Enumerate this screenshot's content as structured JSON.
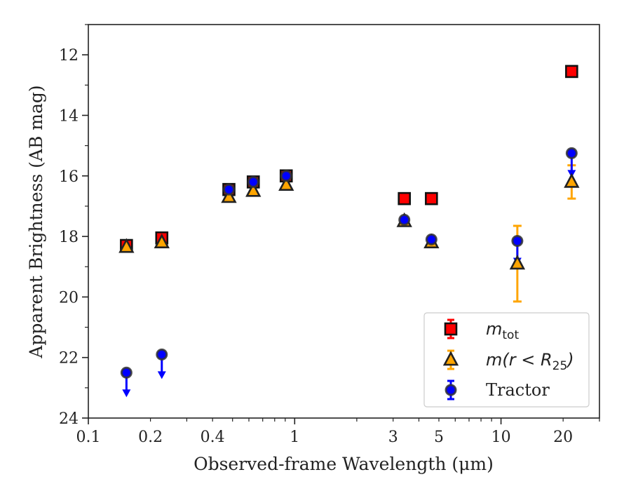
{
  "chart_data": {
    "type": "scatter",
    "xlabel": "Observed-frame Wavelength (μm)",
    "ylabel": "Apparent Brightness (AB mag)",
    "x_scale": "log",
    "xlim": [
      0.1,
      30
    ],
    "ylim": [
      24,
      11
    ],
    "y_inverted": true,
    "x_ticks": [
      0.1,
      0.2,
      0.4,
      1,
      3,
      5,
      10,
      20
    ],
    "x_tick_labels": [
      "0.1",
      "0.2",
      "0.4",
      "1",
      "3",
      "5",
      "10",
      "20"
    ],
    "y_ticks": [
      12,
      14,
      16,
      18,
      20,
      22,
      24
    ],
    "y_tick_labels": [
      "12",
      "14",
      "16",
      "18",
      "20",
      "22",
      "24"
    ],
    "grid": false,
    "legend_position": "lower-right",
    "series": [
      {
        "name": "m_tot",
        "legend_main": "m",
        "legend_sub": "tot",
        "legend_tail": "",
        "marker": "square",
        "color": "#ff0000",
        "edge": "#111111",
        "points": [
          {
            "x": 0.153,
            "y": 18.3,
            "err": 0.1
          },
          {
            "x": 0.227,
            "y": 18.05,
            "err": 0.05
          },
          {
            "x": 0.48,
            "y": 16.45,
            "err": 0.05
          },
          {
            "x": 0.63,
            "y": 16.2,
            "err": 0.05
          },
          {
            "x": 0.91,
            "y": 16.0,
            "err": 0.05
          },
          {
            "x": 3.4,
            "y": 16.75,
            "err": 0.05
          },
          {
            "x": 4.6,
            "y": 16.75,
            "err": 0.05
          },
          {
            "x": 22.0,
            "y": 12.55,
            "err": 0.05
          }
        ]
      },
      {
        "name": "m(r < R25)",
        "legend_main": "m(r < R",
        "legend_sub": "25",
        "legend_tail": ")",
        "marker": "triangle",
        "color": "#ffa500",
        "edge": "#222222",
        "points": [
          {
            "x": 0.153,
            "y": 18.35,
            "err": 0.05
          },
          {
            "x": 0.227,
            "y": 18.2,
            "err": 0.05
          },
          {
            "x": 0.48,
            "y": 16.7,
            "err": 0.05
          },
          {
            "x": 0.63,
            "y": 16.5,
            "err": 0.05
          },
          {
            "x": 0.91,
            "y": 16.3,
            "err": 0.05
          },
          {
            "x": 3.4,
            "y": 17.5,
            "err": 0.05
          },
          {
            "x": 4.6,
            "y": 18.2,
            "err": 0.05
          },
          {
            "x": 12.0,
            "y": 18.9,
            "err": 1.25
          },
          {
            "x": 22.0,
            "y": 16.2,
            "err": 0.55
          }
        ]
      },
      {
        "name": "Tractor",
        "legend_main": "Tractor",
        "legend_sub": "",
        "legend_tail": "",
        "marker": "circle",
        "color": "#0000ff",
        "edge": "#333333",
        "points": [
          {
            "x": 0.153,
            "y": 22.5,
            "err": 0,
            "upper_limit": true
          },
          {
            "x": 0.227,
            "y": 21.9,
            "err": 0,
            "upper_limit": true
          },
          {
            "x": 0.48,
            "y": 16.45,
            "err": 0.05
          },
          {
            "x": 0.63,
            "y": 16.2,
            "err": 0.05
          },
          {
            "x": 0.91,
            "y": 16.0,
            "err": 0.05
          },
          {
            "x": 3.4,
            "y": 17.45,
            "err": 0.05
          },
          {
            "x": 4.6,
            "y": 18.1,
            "err": 0.05
          },
          {
            "x": 12.0,
            "y": 18.15,
            "err": 0,
            "upper_limit": true
          },
          {
            "x": 22.0,
            "y": 15.25,
            "err": 0,
            "upper_limit": true
          }
        ]
      }
    ]
  }
}
